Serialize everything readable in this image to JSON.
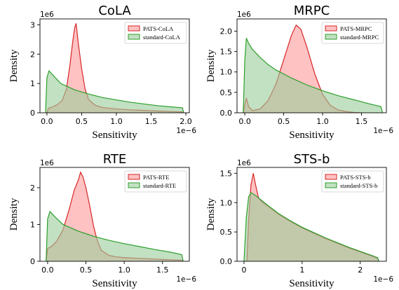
{
  "chart_data": [
    {
      "type": "area",
      "title": "CoLA",
      "xlabel": "Sensitivity",
      "ylabel": "Density",
      "x_offset_label": "1e−6",
      "y_offset_label": "1e6",
      "xlim": [
        -0.1,
        2.05
      ],
      "ylim": [
        0,
        3.2
      ],
      "xticks": [
        0.0,
        0.5,
        1.0,
        1.5,
        2.0
      ],
      "xtick_labels": [
        "0.0",
        "0.5",
        "1.0",
        "1.5",
        "2.0"
      ],
      "yticks": [
        0,
        1,
        2,
        3
      ],
      "ytick_labels": [
        "0",
        "1",
        "2",
        "3"
      ],
      "legend_position": "top-right",
      "series": [
        {
          "name": "PATS-CoLA",
          "color": "#d62728",
          "fill": "#ff9999",
          "x": [
            0.0,
            0.02,
            0.08,
            0.15,
            0.22,
            0.28,
            0.33,
            0.37,
            0.4,
            0.42,
            0.45,
            0.5,
            0.55,
            0.6,
            0.7,
            0.8,
            1.0,
            1.2,
            1.4,
            1.6,
            1.8,
            1.95,
            1.97
          ],
          "y": [
            0.0,
            0.15,
            0.2,
            0.28,
            0.42,
            0.8,
            1.6,
            2.4,
            2.9,
            3.05,
            2.4,
            1.5,
            0.8,
            0.45,
            0.25,
            0.18,
            0.13,
            0.1,
            0.08,
            0.06,
            0.04,
            0.03,
            0.0
          ]
        },
        {
          "name": "standard-CoLA",
          "color": "#2ca02c",
          "fill": "#99cc99",
          "x": [
            -0.02,
            0.0,
            0.03,
            0.1,
            0.2,
            0.4,
            0.6,
            0.8,
            1.0,
            1.2,
            1.4,
            1.6,
            1.8,
            1.95,
            1.97
          ],
          "y": [
            0.0,
            1.2,
            1.43,
            1.25,
            1.0,
            0.78,
            0.64,
            0.52,
            0.44,
            0.36,
            0.3,
            0.24,
            0.2,
            0.17,
            0.0
          ]
        }
      ]
    },
    {
      "type": "area",
      "title": "MRPC",
      "xlabel": "Sensitivity",
      "ylabel": "Density",
      "x_offset_label": "1e−6",
      "y_offset_label": "1e6",
      "xlim": [
        -0.1,
        1.82
      ],
      "ylim": [
        0,
        2.3
      ],
      "xticks": [
        0.0,
        0.5,
        1.0,
        1.5
      ],
      "xtick_labels": [
        "0.0",
        "0.5",
        "1.0",
        "1.5"
      ],
      "yticks": [
        0.0,
        0.5,
        1.0,
        1.5,
        2.0
      ],
      "ytick_labels": [
        "0.0",
        "0.5",
        "1.0",
        "1.5",
        "2.0"
      ],
      "legend_position": "top-right",
      "series": [
        {
          "name": "PATS-MRPC",
          "color": "#d62728",
          "fill": "#ff9999",
          "x": [
            -0.02,
            0.0,
            0.02,
            0.05,
            0.1,
            0.2,
            0.3,
            0.4,
            0.5,
            0.6,
            0.66,
            0.72,
            0.8,
            0.9,
            1.0,
            1.1,
            1.2,
            1.3,
            1.4,
            1.5
          ],
          "y": [
            0.0,
            0.2,
            0.36,
            0.15,
            0.05,
            0.1,
            0.3,
            0.7,
            1.3,
            1.9,
            2.15,
            2.05,
            1.6,
            0.95,
            0.45,
            0.18,
            0.07,
            0.03,
            0.01,
            0.0
          ]
        },
        {
          "name": "standard-MRPC",
          "color": "#2ca02c",
          "fill": "#99cc99",
          "x": [
            -0.02,
            0.0,
            0.02,
            0.05,
            0.1,
            0.2,
            0.3,
            0.4,
            0.6,
            0.8,
            1.0,
            1.2,
            1.4,
            1.6,
            1.75,
            1.77
          ],
          "y": [
            0.0,
            1.3,
            1.83,
            1.7,
            1.55,
            1.35,
            1.18,
            1.05,
            0.85,
            0.68,
            0.54,
            0.42,
            0.32,
            0.22,
            0.15,
            0.0
          ]
        }
      ]
    },
    {
      "type": "area",
      "title": "RTE",
      "xlabel": "Sensitivity",
      "ylabel": "Density",
      "x_offset_label": "1e−6",
      "y_offset_label": "1e6",
      "xlim": [
        -0.1,
        1.85
      ],
      "ylim": [
        0,
        2.55
      ],
      "xticks": [
        0.0,
        0.5,
        1.0,
        1.5
      ],
      "xtick_labels": [
        "0.0",
        "0.5",
        "1.0",
        "1.5"
      ],
      "yticks": [
        0,
        1,
        2
      ],
      "ytick_labels": [
        "0",
        "1",
        "2"
      ],
      "legend_position": "top-right",
      "series": [
        {
          "name": "PATS-RTE",
          "color": "#d62728",
          "fill": "#ff9999",
          "x": [
            -0.02,
            0.0,
            0.05,
            0.12,
            0.2,
            0.28,
            0.35,
            0.4,
            0.43,
            0.46,
            0.5,
            0.55,
            0.6,
            0.65,
            0.7,
            0.8,
            0.9,
            1.0,
            1.2,
            1.4,
            1.6,
            1.75,
            1.77
          ],
          "y": [
            0.0,
            0.35,
            0.4,
            0.55,
            0.85,
            1.4,
            1.95,
            2.2,
            2.42,
            2.3,
            2.0,
            1.5,
            0.95,
            0.55,
            0.3,
            0.16,
            0.12,
            0.1,
            0.08,
            0.06,
            0.04,
            0.03,
            0.0
          ]
        },
        {
          "name": "standard-RTE",
          "color": "#2ca02c",
          "fill": "#99cc99",
          "x": [
            -0.02,
            0.0,
            0.03,
            0.1,
            0.2,
            0.4,
            0.6,
            0.8,
            1.0,
            1.2,
            1.4,
            1.6,
            1.75,
            1.77
          ],
          "y": [
            0.0,
            1.15,
            1.35,
            1.2,
            1.0,
            0.82,
            0.68,
            0.57,
            0.48,
            0.4,
            0.32,
            0.25,
            0.18,
            0.0
          ]
        }
      ]
    },
    {
      "type": "area",
      "title": "STS-b",
      "xlabel": "Sensitivity",
      "ylabel": "Density",
      "x_offset_label": "1e−6",
      "y_offset_label": "1e6",
      "xlim": [
        -0.12,
        2.45
      ],
      "ylim": [
        0,
        1.6
      ],
      "xticks": [
        0,
        1,
        2
      ],
      "xtick_labels": [
        "0",
        "1",
        "2"
      ],
      "yticks": [
        0.0,
        0.5,
        1.0,
        1.5
      ],
      "ytick_labels": [
        "0.0",
        "0.5",
        "1.0",
        "1.5"
      ],
      "legend_position": "top-right",
      "series": [
        {
          "name": "PATS-STS-b",
          "color": "#d62728",
          "fill": "#ff9999",
          "x": [
            0.05,
            0.08,
            0.12,
            0.16,
            0.2,
            0.25,
            0.3,
            0.4,
            0.6,
            0.8,
            1.0,
            1.2,
            1.4,
            1.6,
            1.8,
            2.0,
            2.2,
            2.3,
            2.32
          ],
          "y": [
            0.0,
            0.7,
            1.3,
            1.5,
            1.3,
            1.08,
            1.02,
            0.95,
            0.8,
            0.68,
            0.57,
            0.48,
            0.39,
            0.31,
            0.23,
            0.16,
            0.09,
            0.05,
            0.0
          ]
        },
        {
          "name": "standard-STS-b",
          "color": "#2ca02c",
          "fill": "#99cc99",
          "x": [
            0.0,
            0.04,
            0.08,
            0.12,
            0.2,
            0.3,
            0.4,
            0.6,
            0.8,
            1.0,
            1.2,
            1.4,
            1.6,
            1.8,
            2.0,
            2.2,
            2.3,
            2.32
          ],
          "y": [
            0.0,
            0.75,
            1.1,
            1.17,
            1.12,
            1.04,
            0.96,
            0.81,
            0.69,
            0.58,
            0.49,
            0.4,
            0.32,
            0.24,
            0.17,
            0.1,
            0.06,
            0.0
          ]
        }
      ]
    }
  ]
}
